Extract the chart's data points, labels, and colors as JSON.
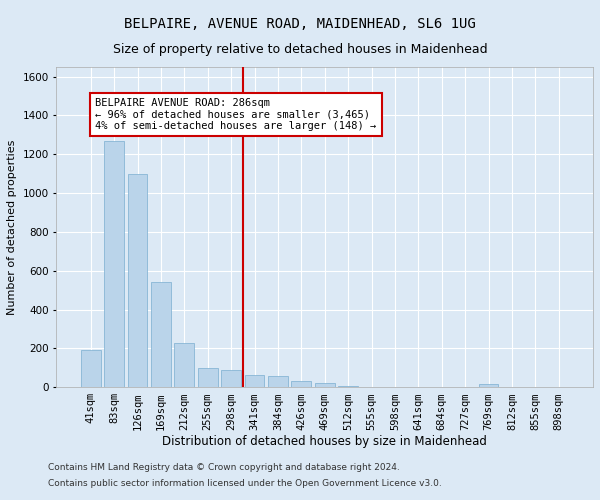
{
  "title": "BELPAIRE, AVENUE ROAD, MAIDENHEAD, SL6 1UG",
  "subtitle": "Size of property relative to detached houses in Maidenhead",
  "xlabel": "Distribution of detached houses by size in Maidenhead",
  "ylabel": "Number of detached properties",
  "footer_line1": "Contains HM Land Registry data © Crown copyright and database right 2024.",
  "footer_line2": "Contains public sector information licensed under the Open Government Licence v3.0.",
  "bar_labels": [
    "41sqm",
    "83sqm",
    "126sqm",
    "169sqm",
    "212sqm",
    "255sqm",
    "298sqm",
    "341sqm",
    "384sqm",
    "426sqm",
    "469sqm",
    "512sqm",
    "555sqm",
    "598sqm",
    "641sqm",
    "684sqm",
    "727sqm",
    "769sqm",
    "812sqm",
    "855sqm",
    "898sqm"
  ],
  "bar_values": [
    190,
    1270,
    1100,
    540,
    230,
    100,
    90,
    60,
    55,
    30,
    20,
    5,
    0,
    0,
    0,
    0,
    0,
    15,
    0,
    0,
    0
  ],
  "bar_color": "#bad4ea",
  "bar_edgecolor": "#7aaed0",
  "background_color": "#dce9f5",
  "grid_color": "#ffffff",
  "vline_position": 6.5,
  "vline_color": "#cc0000",
  "annotation_text": "BELPAIRE AVENUE ROAD: 286sqm\n← 96% of detached houses are smaller (3,465)\n4% of semi-detached houses are larger (148) →",
  "annotation_box_facecolor": "#ffffff",
  "annotation_box_edgecolor": "#cc0000",
  "ylim": [
    0,
    1650
  ],
  "yticks": [
    0,
    200,
    400,
    600,
    800,
    1000,
    1200,
    1400,
    1600
  ],
  "title_fontsize": 10,
  "subtitle_fontsize": 9,
  "annotation_fontsize": 7.5,
  "xlabel_fontsize": 8.5,
  "ylabel_fontsize": 8,
  "tick_fontsize": 7.5,
  "footer_fontsize": 6.5
}
